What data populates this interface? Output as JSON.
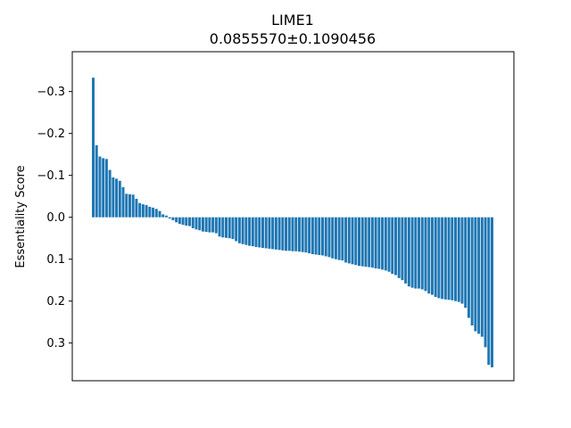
{
  "chart_data": {
    "type": "bar",
    "title": "LIME1",
    "subtitle": "0.0855570±0.1090456",
    "xlabel": "",
    "ylabel": "Essentiality Score",
    "ylim": [
      0.39,
      -0.395
    ],
    "yaxis_inverted": true,
    "yticks": [
      -0.3,
      -0.2,
      -0.1,
      0.0,
      0.1,
      0.2,
      0.3
    ],
    "ytick_labels": [
      "−0.3",
      "−0.2",
      "−0.1",
      "0.0",
      "0.1",
      "0.2",
      "0.3"
    ],
    "xticks_visible": false,
    "grid": false,
    "bar_color": "#1f77b4",
    "values": [
      -0.333,
      -0.172,
      -0.145,
      -0.141,
      -0.139,
      -0.113,
      -0.095,
      -0.092,
      -0.087,
      -0.072,
      -0.056,
      -0.055,
      -0.054,
      -0.044,
      -0.034,
      -0.031,
      -0.029,
      -0.025,
      -0.023,
      -0.02,
      -0.015,
      -0.007,
      -0.004,
      0.003,
      0.007,
      0.012,
      0.016,
      0.018,
      0.02,
      0.021,
      0.026,
      0.029,
      0.031,
      0.034,
      0.035,
      0.036,
      0.036,
      0.038,
      0.046,
      0.048,
      0.049,
      0.05,
      0.052,
      0.057,
      0.062,
      0.064,
      0.066,
      0.068,
      0.069,
      0.071,
      0.072,
      0.073,
      0.074,
      0.075,
      0.076,
      0.077,
      0.078,
      0.079,
      0.08,
      0.08,
      0.081,
      0.081,
      0.082,
      0.083,
      0.084,
      0.086,
      0.088,
      0.089,
      0.09,
      0.091,
      0.093,
      0.095,
      0.098,
      0.1,
      0.102,
      0.103,
      0.108,
      0.11,
      0.112,
      0.114,
      0.116,
      0.117,
      0.118,
      0.119,
      0.12,
      0.122,
      0.123,
      0.125,
      0.127,
      0.13,
      0.135,
      0.138,
      0.145,
      0.15,
      0.158,
      0.165,
      0.168,
      0.17,
      0.17,
      0.172,
      0.176,
      0.182,
      0.185,
      0.19,
      0.193,
      0.195,
      0.196,
      0.197,
      0.198,
      0.2,
      0.202,
      0.206,
      0.216,
      0.24,
      0.258,
      0.272,
      0.278,
      0.285,
      0.31,
      0.352,
      0.358
    ]
  }
}
